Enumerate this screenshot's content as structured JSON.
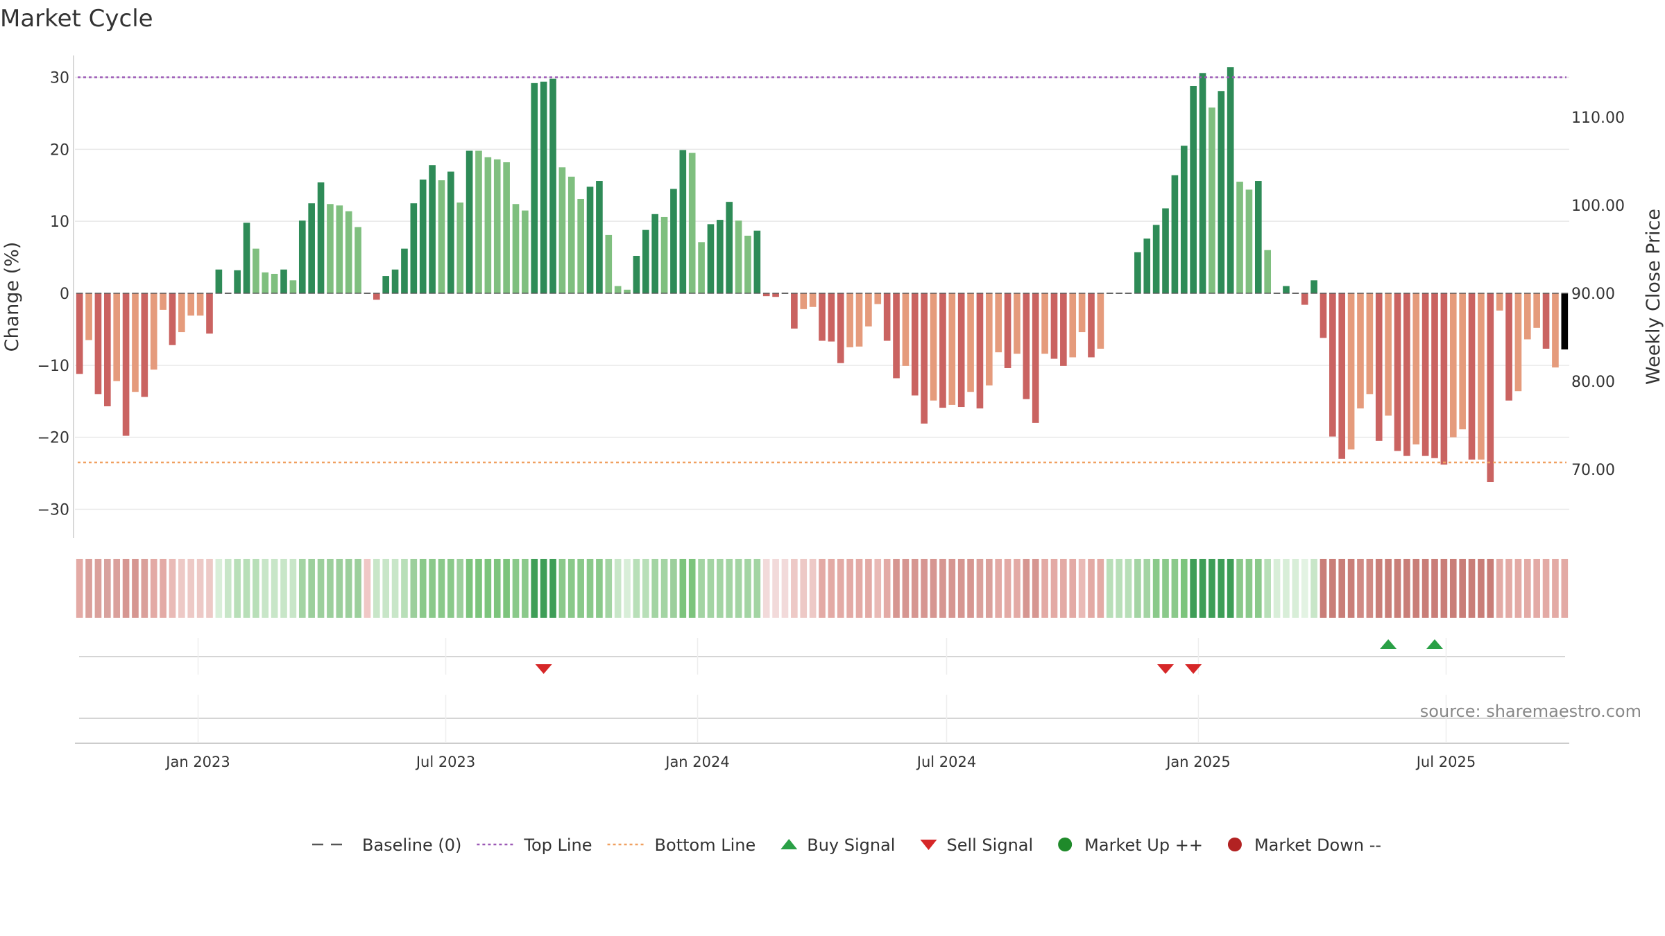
{
  "chart_data": {
    "type": "bar",
    "title": "Market Cycle",
    "ylabel": "Change (%)",
    "y2label": "Weekly Close Price",
    "ylim": [
      -34,
      34
    ],
    "yticks": [
      30,
      20,
      10,
      0,
      -10,
      -20,
      -30
    ],
    "ytick_labels": [
      "30",
      "20",
      "10",
      "0",
      "−10",
      "−20",
      "−30"
    ],
    "y2lim": [
      62.2,
      117.8
    ],
    "y2ticks": [
      110,
      100,
      90,
      80,
      70
    ],
    "y2tick_labels": [
      "110.00",
      "100.00",
      "90.00",
      "80.00",
      "70.00"
    ],
    "top_line": 30,
    "bottom_line": -23.5,
    "start_date": "2022-10-03",
    "end_date": "2025-09-29",
    "date_ticks": [
      {
        "label": "Jan 2023",
        "date": "2023-01-01"
      },
      {
        "label": "Jul 2023",
        "date": "2023-07-01"
      },
      {
        "label": "Jan 2024",
        "date": "2024-01-01"
      },
      {
        "label": "Jul 2024",
        "date": "2024-07-01"
      },
      {
        "label": "Jan 2025",
        "date": "2025-01-01"
      },
      {
        "label": "Jul 2025",
        "date": "2025-07-01"
      }
    ],
    "values": [
      -11.2,
      -6.5,
      -14,
      -15.7,
      -12.2,
      -19.8,
      -13.7,
      -14.4,
      -10.6,
      -2.3,
      -7.2,
      -5.4,
      -3.1,
      -3.1,
      -5.6,
      3.3,
      0,
      3.2,
      9.8,
      6.2,
      2.9,
      2.7,
      3.3,
      1.8,
      10.1,
      12.5,
      15.4,
      12.4,
      12.2,
      11.4,
      9.2,
      0,
      -0.9,
      2.4,
      3.3,
      6.2,
      12.5,
      15.8,
      17.8,
      15.7,
      16.9,
      12.6,
      19.8,
      19.8,
      18.9,
      18.6,
      18.2,
      12.4,
      11.5,
      29.2,
      29.4,
      29.8,
      17.5,
      16.2,
      13.1,
      14.8,
      15.6,
      8.1,
      1,
      0.5,
      5.2,
      8.8,
      11,
      10.6,
      14.5,
      19.9,
      19.5,
      7.1,
      9.6,
      10.2,
      12.7,
      10.1,
      8,
      8.7,
      -0.4,
      -0.5,
      0,
      -4.9,
      -2.2,
      -1.9,
      -6.6,
      -6.7,
      -9.7,
      -7.5,
      -7.4,
      -4.6,
      -1.5,
      -6.6,
      -11.8,
      -10.1,
      -14.2,
      -18.1,
      -14.9,
      -15.9,
      -15.5,
      -15.8,
      -13.7,
      -16,
      -12.8,
      -8.2,
      -10.4,
      -8.4,
      -14.7,
      -18,
      -8.4,
      -9.1,
      -10.1,
      -8.9,
      -5.4,
      -8.9,
      -7.7,
      0,
      0,
      0,
      5.7,
      7.6,
      9.5,
      11.8,
      16.4,
      20.5,
      28.8,
      30.6,
      25.8,
      28.1,
      31.4,
      15.5,
      14.4,
      15.6,
      6,
      0,
      1,
      0,
      -1.6,
      1.8,
      -6.2,
      -19.9,
      -23,
      -21.7,
      -16,
      -14,
      -20.5,
      -17,
      -21.9,
      -22.6,
      -21,
      -22.6,
      -22.9,
      -23.8,
      -20,
      -18.9,
      -23.1,
      -23.1,
      -26.2,
      -2.4,
      -14.9,
      -13.6,
      -6.4,
      -4.8,
      -7.7,
      -10.3,
      -7.8
    ],
    "bar_colors": [
      "#ca6361",
      "#e59b7c",
      "#ca6361",
      "#ca6361",
      "#e59b7c",
      "#ca6361",
      "#e59b7c",
      "#ca6361",
      "#e59b7c",
      "#e59b7c",
      "#ca6361",
      "#e59b7c",
      "#e59b7c",
      "#e59b7c",
      "#ca6361",
      "#2e8b57",
      "#2e8b57",
      "#2e8b57",
      "#2e8b57",
      "#7fbf7f",
      "#7fbf7f",
      "#7fbf7f",
      "#2e8b57",
      "#7fbf7f",
      "#2e8b57",
      "#2e8b57",
      "#2e8b57",
      "#7fbf7f",
      "#7fbf7f",
      "#7fbf7f",
      "#7fbf7f",
      "#ca6361",
      "#ca6361",
      "#2e8b57",
      "#2e8b57",
      "#2e8b57",
      "#2e8b57",
      "#2e8b57",
      "#2e8b57",
      "#7fbf7f",
      "#2e8b57",
      "#7fbf7f",
      "#2e8b57",
      "#7fbf7f",
      "#7fbf7f",
      "#7fbf7f",
      "#7fbf7f",
      "#7fbf7f",
      "#7fbf7f",
      "#2e8b57",
      "#2e8b57",
      "#2e8b57",
      "#7fbf7f",
      "#7fbf7f",
      "#7fbf7f",
      "#2e8b57",
      "#2e8b57",
      "#7fbf7f",
      "#7fbf7f",
      "#7fbf7f",
      "#2e8b57",
      "#2e8b57",
      "#2e8b57",
      "#7fbf7f",
      "#2e8b57",
      "#2e8b57",
      "#7fbf7f",
      "#7fbf7f",
      "#2e8b57",
      "#2e8b57",
      "#2e8b57",
      "#7fbf7f",
      "#7fbf7f",
      "#2e8b57",
      "#ca6361",
      "#ca6361",
      "#e59b7c",
      "#ca6361",
      "#e59b7c",
      "#e59b7c",
      "#ca6361",
      "#ca6361",
      "#ca6361",
      "#e59b7c",
      "#e59b7c",
      "#e59b7c",
      "#e59b7c",
      "#ca6361",
      "#ca6361",
      "#e59b7c",
      "#ca6361",
      "#ca6361",
      "#e59b7c",
      "#ca6361",
      "#e59b7c",
      "#ca6361",
      "#e59b7c",
      "#ca6361",
      "#e59b7c",
      "#e59b7c",
      "#ca6361",
      "#e59b7c",
      "#ca6361",
      "#ca6361",
      "#e59b7c",
      "#ca6361",
      "#ca6361",
      "#e59b7c",
      "#e59b7c",
      "#ca6361",
      "#e59b7c",
      "#2e8b57",
      "#2e8b57",
      "#2e8b57",
      "#2e8b57",
      "#2e8b57",
      "#2e8b57",
      "#2e8b57",
      "#2e8b57",
      "#2e8b57",
      "#2e8b57",
      "#2e8b57",
      "#7fbf7f",
      "#2e8b57",
      "#2e8b57",
      "#7fbf7f",
      "#7fbf7f",
      "#2e8b57",
      "#7fbf7f",
      "#2e8b57",
      "#2e8b57",
      "#2e8b57",
      "#ca6361",
      "#2e8b57",
      "#ca6361",
      "#ca6361",
      "#ca6361",
      "#e59b7c",
      "#e59b7c",
      "#e59b7c",
      "#ca6361",
      "#e59b7c",
      "#ca6361",
      "#ca6361",
      "#e59b7c",
      "#ca6361",
      "#ca6361",
      "#ca6361",
      "#e59b7c",
      "#e59b7c",
      "#ca6361",
      "#e59b7c",
      "#ca6361",
      "#e59b7c",
      "#ca6361",
      "#e59b7c",
      "#e59b7c",
      "#e59b7c",
      "#ca6361",
      "#e59b7c"
    ],
    "regime_strip_colors": [
      "#e3aaa5",
      "#daa09b",
      "#daa09b",
      "#d8a29e",
      "#daa09b",
      "#d69691",
      "#d69691",
      "#daa09b",
      "#e3aaa5",
      "#e3aaa5",
      "#e9bab6",
      "#edc9c6",
      "#edc9c6",
      "#edc9c6",
      "#edc9c6",
      "#d8eed8",
      "#c8e6c8",
      "#b8dfb8",
      "#b8dfb8",
      "#b8dfb8",
      "#c8e6c8",
      "#c8e6c8",
      "#c8e6c8",
      "#c8e6c8",
      "#a3d4a3",
      "#9ccf9c",
      "#9ccf9c",
      "#9ccf9c",
      "#9ccf9c",
      "#9ccf9c",
      "#9ccf9c",
      "#f0c8c6",
      "#c8e6c8",
      "#c8e6c8",
      "#c8e6c8",
      "#b8dfb8",
      "#9ccf9c",
      "#8ac98a",
      "#8ac98a",
      "#8ac98a",
      "#8ac98a",
      "#9ccf9c",
      "#7cc47c",
      "#7cc47c",
      "#7cc47c",
      "#7cc47c",
      "#7cc47c",
      "#8ac98a",
      "#8ac98a",
      "#3e9e57",
      "#3e9e57",
      "#3e9e57",
      "#8ac98a",
      "#8ac98a",
      "#8ac98a",
      "#8ac98a",
      "#8ac98a",
      "#a3d4a3",
      "#c8e6c8",
      "#d8eed8",
      "#b8dfb8",
      "#b8dfb8",
      "#a3d4a3",
      "#a3d4a3",
      "#9ccf9c",
      "#7cc47c",
      "#7cc47c",
      "#a3d4a3",
      "#a3d4a3",
      "#a3d4a3",
      "#a3d4a3",
      "#a3d4a3",
      "#a3d4a3",
      "#a3d4a3",
      "#f2dada",
      "#f2dada",
      "#f2dada",
      "#edc9c6",
      "#edc9c6",
      "#edc9c6",
      "#e3aaa5",
      "#e3aaa5",
      "#e3aaa5",
      "#e3aaa5",
      "#e3aaa5",
      "#e3aaa5",
      "#e9bab6",
      "#e3aaa5",
      "#d69691",
      "#d69691",
      "#d69691",
      "#d69691",
      "#d69691",
      "#d69691",
      "#d69691",
      "#d69691",
      "#d69691",
      "#daa09b",
      "#daa09b",
      "#e3aaa5",
      "#e3aaa5",
      "#e3aaa5",
      "#d69691",
      "#d69691",
      "#e3aaa5",
      "#e3aaa5",
      "#e3aaa5",
      "#e3aaa5",
      "#e9bab6",
      "#e3aaa5",
      "#e3aaa5",
      "#b8dfb8",
      "#b8dfb8",
      "#b8dfb8",
      "#a3d4a3",
      "#a3d4a3",
      "#8ac98a",
      "#8ac98a",
      "#8ac98a",
      "#7cc47c",
      "#3e9e57",
      "#3e9e57",
      "#3e9e57",
      "#3e9e57",
      "#3e9e57",
      "#8ac98a",
      "#8ac98a",
      "#8ac98a",
      "#b8dfb8",
      "#d8eed8",
      "#d8eed8",
      "#d8eed8",
      "#e3f3e3",
      "#c8e6c8",
      "#c97e78",
      "#c97e78",
      "#c97e78",
      "#c97e78",
      "#d08a84",
      "#d08a84",
      "#c97e78",
      "#c97e78",
      "#c97e78",
      "#c97e78",
      "#c97e78",
      "#c97e78",
      "#c97e78",
      "#c97e78",
      "#c97e78",
      "#c97e78",
      "#c97e78",
      "#c97e78",
      "#c97e78",
      "#e3aaa5",
      "#e3aaa5",
      "#e3aaa5",
      "#e3aaa5",
      "#e3aaa5",
      "#e3aaa5",
      "#e3aaa5",
      "#e3aaa5"
    ],
    "buy_signals": [
      141,
      146
    ],
    "sell_signals": [
      50,
      117,
      120
    ],
    "source": "source: sharemaestro.com",
    "colors": {
      "dark_green": "#2e8b57",
      "light_green": "#7fbf7f",
      "dark_red": "#ca6361",
      "light_red": "#e59b7c",
      "top_line": "#9b59b6",
      "bottom_line": "#f0a060",
      "buy": "#2aa046",
      "sell": "#d62728",
      "market_up": "#1f8a2a",
      "market_down": "#b22222",
      "baseline": "#555555"
    },
    "legend": [
      {
        "key": "baseline",
        "label": "Baseline (0)",
        "marker": "dash"
      },
      {
        "key": "top",
        "label": "Top Line",
        "marker": "dotted-purple"
      },
      {
        "key": "bottom",
        "label": "Bottom Line",
        "marker": "dotted-orange"
      },
      {
        "key": "buy",
        "label": "Buy Signal",
        "marker": "triangle-up"
      },
      {
        "key": "sell",
        "label": "Sell Signal",
        "marker": "triangle-down"
      },
      {
        "key": "up",
        "label": "Market Up ++",
        "marker": "circle-green"
      },
      {
        "key": "down",
        "label": "Market Down --",
        "marker": "circle-red"
      }
    ]
  }
}
